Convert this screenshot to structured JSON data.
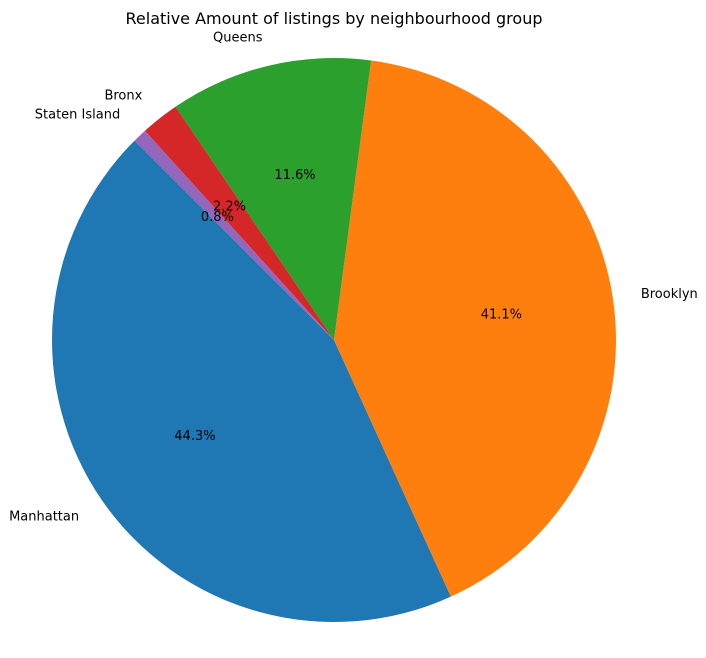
{
  "chart_data": {
    "type": "pie",
    "title": "Relative Amount of listings by neighbourhood group",
    "slices": [
      {
        "label": "Manhattan",
        "value": 44.3,
        "pct_label": "44.3%",
        "color": "#1f77b4"
      },
      {
        "label": "Brooklyn",
        "value": 41.1,
        "pct_label": "41.1%",
        "color": "#ff7f0e"
      },
      {
        "label": "Queens",
        "value": 11.6,
        "pct_label": "11.6%",
        "color": "#2ca02c"
      },
      {
        "label": "Bronx",
        "value": 2.2,
        "pct_label": "2.2%",
        "color": "#d62728"
      },
      {
        "label": "Staten Island",
        "value": 0.8,
        "pct_label": "0.8%",
        "color": "#9467bd"
      }
    ],
    "start_angle_deg": 135,
    "direction": "counterclockwise",
    "legend": "none"
  }
}
